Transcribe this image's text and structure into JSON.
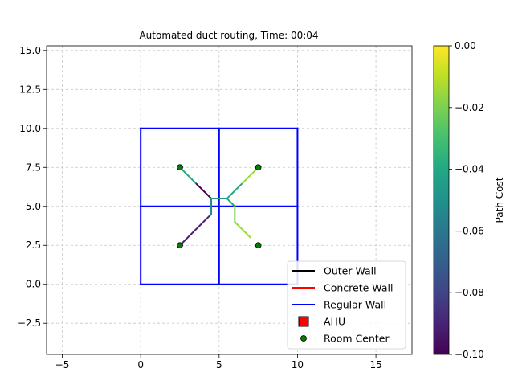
{
  "chart_data": {
    "type": "line",
    "title": "Automated duct routing, Time: 00:04",
    "xlabel": "",
    "ylabel": "",
    "xlim": [
      -6,
      17.3
    ],
    "ylim": [
      -4.5,
      15.3
    ],
    "xticks": [
      -5,
      0,
      5,
      10,
      15
    ],
    "yticks": [
      -2.5,
      0.0,
      2.5,
      5.0,
      7.5,
      10.0,
      12.5,
      15.0
    ],
    "xtick_labels": [
      "−5",
      "0",
      "5",
      "10",
      "15"
    ],
    "ytick_labels": [
      "−2.5",
      "0.0",
      "2.5",
      "5.0",
      "7.5",
      "10.0",
      "12.5",
      "15.0"
    ],
    "grid": true,
    "walls": {
      "regular": [
        [
          [
            0,
            0
          ],
          [
            10,
            0
          ]
        ],
        [
          [
            10,
            0
          ],
          [
            10,
            10
          ]
        ],
        [
          [
            10,
            10
          ],
          [
            0,
            10
          ]
        ],
        [
          [
            0,
            10
          ],
          [
            0,
            0
          ]
        ],
        [
          [
            5,
            0
          ],
          [
            5,
            10
          ]
        ],
        [
          [
            0,
            5
          ],
          [
            10,
            5
          ]
        ]
      ],
      "outer": [],
      "concrete": []
    },
    "room_centers": [
      [
        2.5,
        7.5
      ],
      [
        7.5,
        7.5
      ],
      [
        2.5,
        2.5
      ],
      [
        7.5,
        2.5
      ]
    ],
    "duct_paths": [
      {
        "points": [
          [
            4.5,
            5.5
          ],
          [
            3.5,
            6.5
          ],
          [
            2.5,
            7.5
          ]
        ],
        "costs": [
          -0.1,
          -0.04
        ]
      },
      {
        "points": [
          [
            5.5,
            5.5
          ],
          [
            6.5,
            6.5
          ],
          [
            7.5,
            7.5
          ]
        ],
        "costs": [
          -0.04,
          -0.015
        ]
      },
      {
        "points": [
          [
            4.5,
            4.5
          ],
          [
            2.5,
            2.5
          ]
        ],
        "costs": [
          -0.09
        ]
      },
      {
        "points": [
          [
            6.0,
            4.0
          ],
          [
            7.0,
            3.0
          ]
        ],
        "costs": [
          -0.015
        ]
      },
      {
        "points": [
          [
            4.5,
            4.5
          ],
          [
            4.5,
            5.5
          ],
          [
            5.5,
            5.5
          ],
          [
            6.0,
            5.0
          ],
          [
            6.0,
            4.0
          ]
        ],
        "costs": [
          -0.055,
          -0.045,
          -0.04,
          -0.02
        ]
      }
    ],
    "legend": {
      "placement": "lower-right",
      "entries": [
        "Outer Wall",
        "Concrete Wall",
        "Regular Wall",
        "AHU",
        "Room Center"
      ]
    },
    "colorbar": {
      "label": "Path Cost",
      "range": [
        -0.1,
        0.0
      ],
      "ticks": [
        0.0,
        -0.02,
        -0.04,
        -0.06,
        -0.08,
        -0.1
      ],
      "tick_labels": [
        "0.00",
        "−0.02",
        "−0.04",
        "−0.06",
        "−0.08",
        "−0.10"
      ],
      "colormap": "viridis"
    },
    "colors": {
      "outer_wall": "#000000",
      "concrete_wall": "#ff0000",
      "regular_wall": "#0000ff",
      "ahu": "#ff0000",
      "room_center": "#008000",
      "grid": "#b0b0b0"
    }
  }
}
